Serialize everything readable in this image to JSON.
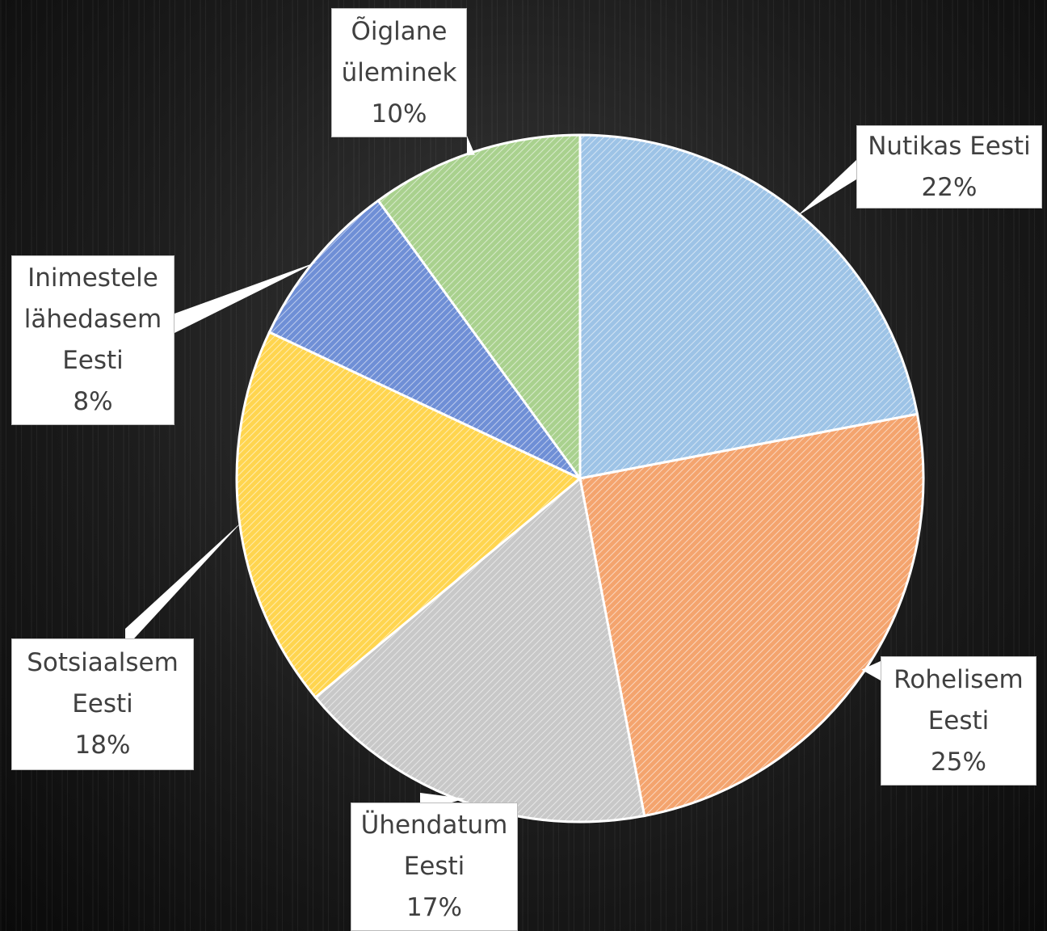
{
  "chart_data": {
    "type": "pie",
    "categories": [
      "Nutikas Eesti",
      "Rohelisem Eesti",
      "Ühendatum Eesti",
      "Sotsiaalsem Eesti",
      "Inimestele lähedasem Eesti",
      "Õiglane üleminek"
    ],
    "values": [
      22,
      25,
      17,
      18,
      8,
      10
    ],
    "value_labels": [
      "22%",
      "25%",
      "17%",
      "18%",
      "8%",
      "10%"
    ],
    "colors": [
      "#9dc3e6",
      "#f4a46e",
      "#c8c8c8",
      "#ffd54f",
      "#6f8fd6",
      "#a9d18e"
    ]
  }
}
